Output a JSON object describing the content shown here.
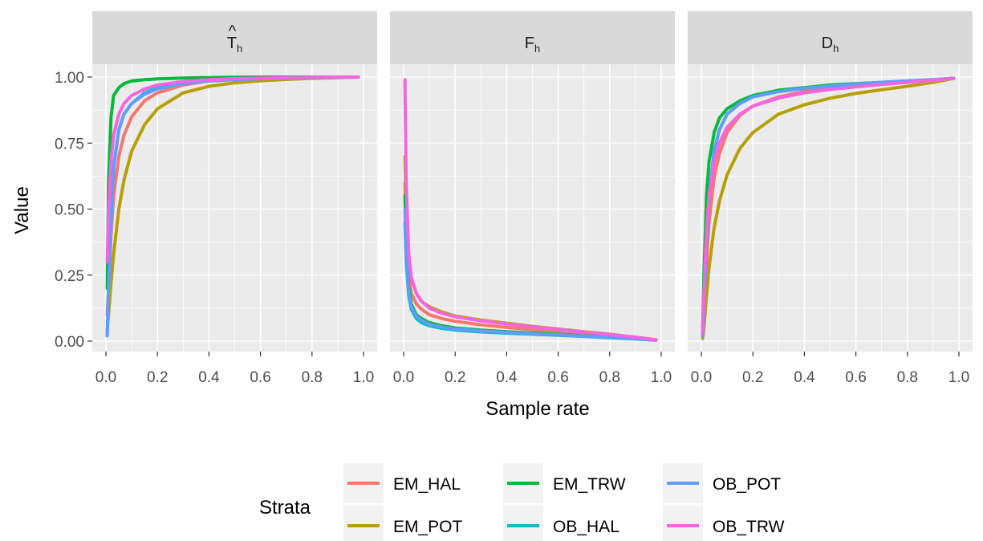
{
  "chart_data": {
    "type": "line",
    "xlabel": "Sample rate",
    "ylabel": "Value",
    "xlim": [
      0,
      1
    ],
    "ylim": [
      0,
      1
    ],
    "x_ticks": [
      "0.0",
      "0.2",
      "0.4",
      "0.6",
      "0.8",
      "1.0"
    ],
    "y_ticks": [
      "0.00",
      "0.25",
      "0.50",
      "0.75",
      "1.00"
    ],
    "grid": true,
    "legend_title": "Strata",
    "legend_position": "bottom",
    "colors": {
      "EM_HAL": "#F8766D",
      "EM_POT": "#B79F00",
      "EM_TRW": "#00BA38",
      "OB_HAL": "#00BFC4",
      "OB_POT": "#619CFF",
      "OB_TRW": "#F564E3"
    },
    "legend_order": [
      "EM_HAL",
      "EM_POT",
      "EM_TRW",
      "OB_HAL",
      "OB_POT",
      "OB_TRW"
    ],
    "x": [
      0.005,
      0.01,
      0.02,
      0.03,
      0.05,
      0.07,
      0.1,
      0.15,
      0.2,
      0.3,
      0.4,
      0.5,
      0.6,
      0.7,
      0.8,
      0.9,
      0.98
    ],
    "panels": [
      {
        "strip_main": "T",
        "strip_hat": "^",
        "strip_sub": "h",
        "series": [
          {
            "name": "EM_HAL",
            "values": [
              0.1,
              0.2,
              0.4,
              0.55,
              0.7,
              0.78,
              0.85,
              0.91,
              0.94,
              0.97,
              0.985,
              0.99,
              0.995,
              0.997,
              0.998,
              0.999,
              1.0
            ]
          },
          {
            "name": "EM_POT",
            "values": [
              0.04,
              0.1,
              0.22,
              0.33,
              0.5,
              0.61,
              0.72,
              0.82,
              0.88,
              0.94,
              0.965,
              0.978,
              0.986,
              0.991,
              0.995,
              0.998,
              1.0
            ]
          },
          {
            "name": "EM_TRW",
            "values": [
              0.2,
              0.6,
              0.85,
              0.93,
              0.96,
              0.975,
              0.985,
              0.99,
              0.993,
              0.996,
              0.998,
              0.999,
              1.0,
              1.0,
              1.0,
              1.0,
              1.0
            ]
          },
          {
            "name": "OB_HAL",
            "values": [
              0.02,
              0.2,
              0.48,
              0.66,
              0.8,
              0.86,
              0.9,
              0.94,
              0.96,
              0.98,
              0.988,
              0.992,
              0.995,
              0.997,
              0.998,
              0.999,
              1.0
            ]
          },
          {
            "name": "OB_POT",
            "values": [
              0.02,
              0.18,
              0.48,
              0.66,
              0.8,
              0.86,
              0.9,
              0.935,
              0.955,
              0.975,
              0.985,
              0.99,
              0.994,
              0.996,
              0.998,
              0.999,
              1.0
            ]
          },
          {
            "name": "OB_TRW",
            "values": [
              0.3,
              0.5,
              0.68,
              0.78,
              0.86,
              0.9,
              0.93,
              0.955,
              0.97,
              0.983,
              0.99,
              0.994,
              0.996,
              0.998,
              0.999,
              1.0,
              1.0
            ]
          }
        ]
      },
      {
        "strip_main": "F",
        "strip_hat": "",
        "strip_sub": "h",
        "series": [
          {
            "name": "EM_HAL",
            "values": [
              0.6,
              0.4,
              0.25,
              0.18,
              0.14,
              0.12,
              0.1,
              0.085,
              0.075,
              0.062,
              0.052,
              0.044,
              0.036,
              0.028,
              0.02,
              0.012,
              0.005
            ]
          },
          {
            "name": "EM_POT",
            "values": [
              0.7,
              0.5,
              0.32,
              0.24,
              0.18,
              0.15,
              0.13,
              0.11,
              0.095,
              0.08,
              0.068,
              0.056,
              0.046,
              0.036,
              0.026,
              0.015,
              0.005
            ]
          },
          {
            "name": "EM_TRW",
            "values": [
              0.55,
              0.35,
              0.2,
              0.14,
              0.1,
              0.085,
              0.07,
              0.058,
              0.05,
              0.042,
              0.036,
              0.031,
              0.026,
              0.02,
              0.015,
              0.009,
              0.004
            ]
          },
          {
            "name": "OB_HAL",
            "values": [
              0.45,
              0.3,
              0.17,
              0.12,
              0.085,
              0.07,
              0.058,
              0.048,
              0.042,
              0.035,
              0.03,
              0.026,
              0.022,
              0.018,
              0.013,
              0.008,
              0.004
            ]
          },
          {
            "name": "OB_POT",
            "values": [
              0.5,
              0.32,
              0.18,
              0.13,
              0.095,
              0.078,
              0.064,
              0.053,
              0.046,
              0.039,
              0.033,
              0.028,
              0.024,
              0.019,
              0.014,
              0.009,
              0.004
            ]
          },
          {
            "name": "OB_TRW",
            "values": [
              0.99,
              0.6,
              0.33,
              0.24,
              0.18,
              0.15,
              0.125,
              0.105,
              0.092,
              0.077,
              0.065,
              0.054,
              0.044,
              0.035,
              0.025,
              0.015,
              0.005
            ]
          }
        ]
      },
      {
        "strip_main": "D",
        "strip_hat": "",
        "strip_sub": "h",
        "series": [
          {
            "name": "EM_HAL",
            "values": [
              0.02,
              0.1,
              0.3,
              0.45,
              0.62,
              0.71,
              0.79,
              0.855,
              0.89,
              0.925,
              0.945,
              0.958,
              0.967,
              0.975,
              0.982,
              0.989,
              0.995
            ]
          },
          {
            "name": "EM_POT",
            "values": [
              0.01,
              0.05,
              0.17,
              0.28,
              0.43,
              0.53,
              0.63,
              0.73,
              0.79,
              0.86,
              0.895,
              0.92,
              0.938,
              0.952,
              0.965,
              0.98,
              0.995
            ]
          },
          {
            "name": "EM_TRW",
            "values": [
              0.05,
              0.25,
              0.55,
              0.68,
              0.79,
              0.845,
              0.88,
              0.91,
              0.93,
              0.95,
              0.96,
              0.97,
              0.975,
              0.98,
              0.985,
              0.99,
              0.995
            ]
          },
          {
            "name": "OB_HAL",
            "values": [
              0.02,
              0.12,
              0.38,
              0.55,
              0.72,
              0.8,
              0.86,
              0.9,
              0.925,
              0.945,
              0.957,
              0.966,
              0.973,
              0.98,
              0.985,
              0.99,
              0.995
            ]
          },
          {
            "name": "OB_POT",
            "values": [
              0.02,
              0.12,
              0.38,
              0.55,
              0.72,
              0.8,
              0.86,
              0.9,
              0.925,
              0.945,
              0.957,
              0.966,
              0.973,
              0.98,
              0.985,
              0.99,
              0.995
            ]
          },
          {
            "name": "OB_TRW",
            "values": [
              0.03,
              0.18,
              0.42,
              0.55,
              0.68,
              0.75,
              0.81,
              0.86,
              0.89,
              0.92,
              0.94,
              0.953,
              0.963,
              0.972,
              0.98,
              0.988,
              0.995
            ]
          }
        ]
      }
    ]
  }
}
